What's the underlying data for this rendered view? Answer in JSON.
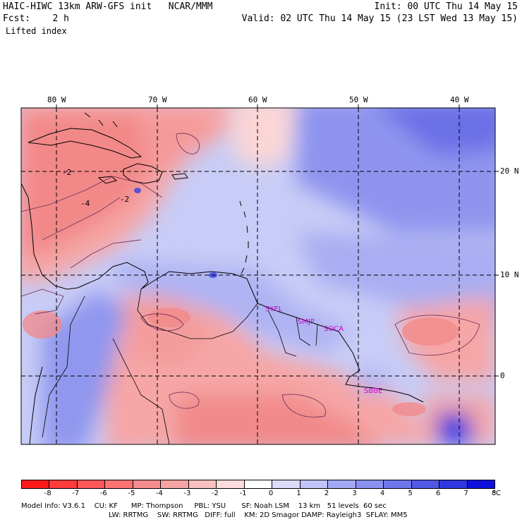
{
  "header": {
    "left_line1": "HAIC-HIWC 13km ARW-GFS init   NCAR/MMM",
    "left_line2": "Fcst:    2 h",
    "left_line3": "Lifted index",
    "right_line1": "Init: 00 UTC Thu 14 May 15",
    "right_line2": "Valid: 02 UTC Thu 14 May 15 (23 LST Wed 13 May 15)"
  },
  "map": {
    "lon_labels": [
      "80 W",
      "70 W",
      "60 W",
      "50 W",
      "40 W"
    ],
    "lat_labels": [
      "20 N",
      "10 N",
      "0"
    ],
    "contour_labels": [
      "-2",
      "-4",
      "-2"
    ],
    "station_labels": [
      "SYEL",
      "SMJP",
      "SOCA",
      "SBBE"
    ],
    "colors": {
      "magenta": "#d000d0",
      "coast": "#000000"
    }
  },
  "colorbar": {
    "ticks": [
      "-8",
      "-7",
      "-6",
      "-5",
      "-4",
      "-3",
      "-2",
      "-1",
      "0",
      "1",
      "2",
      "3",
      "4",
      "5",
      "6",
      "7",
      "8"
    ],
    "unit": "°C",
    "colors": [
      "#ff1a1a",
      "#ff3b3b",
      "#ff5858",
      "#fb7373",
      "#f78c8c",
      "#f6a4a4",
      "#f9c0c0",
      "#fcdcdc",
      "#ffffff",
      "#dcdcfa",
      "#c0c4f8",
      "#a3a8f4",
      "#8a90f0",
      "#6f76ec",
      "#5258e6",
      "#2f36e0",
      "#1010dd"
    ]
  },
  "footer": {
    "line1": "Model Info: V3.6.1    CU: KF      MP: Thompson     PBL: YSU       SF: Noah LSM    13 km   51 levels  60 sec",
    "line2": "LW: RRTMG    SW: RRTMG   DIFF: full    KM: 2D Smagor DAMP: Rayleigh3  SFLAY: MM5"
  }
}
